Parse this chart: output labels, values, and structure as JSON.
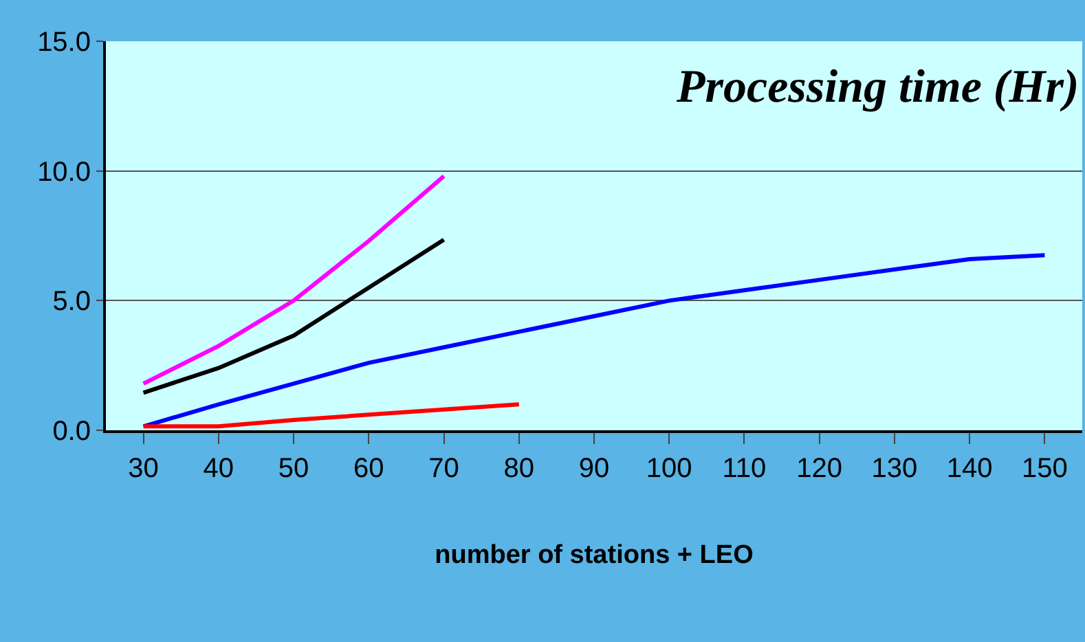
{
  "chart_data": {
    "type": "line",
    "annotations": [
      "Processing time (Hr)"
    ],
    "xlabel": "number of stations + LEO",
    "categories": [
      "30",
      "40",
      "50",
      "60",
      "70",
      "80",
      "90",
      "100",
      "110",
      "120",
      "130",
      "140",
      "150"
    ],
    "series": [
      {
        "color": "#ff00ff",
        "values": [
          1.8,
          3.25,
          5.0,
          7.3,
          9.8,
          null,
          null,
          null,
          null,
          null,
          null,
          null,
          null
        ]
      },
      {
        "color": "#000000",
        "values": [
          1.45,
          2.4,
          3.65,
          5.5,
          7.35,
          null,
          null,
          null,
          null,
          null,
          null,
          null,
          null
        ]
      },
      {
        "color": "#0000ff",
        "values": [
          0.15,
          1.0,
          1.8,
          2.6,
          3.2,
          3.8,
          4.4,
          5.0,
          5.4,
          5.8,
          6.2,
          6.6,
          6.75
        ]
      },
      {
        "color": "#ff0000",
        "values": [
          0.15,
          0.15,
          0.4,
          0.6,
          0.8,
          1.0,
          null,
          null,
          null,
          null,
          null,
          null,
          null
        ]
      }
    ],
    "ylim": [
      0,
      15
    ],
    "yticks": [
      {
        "value": 0,
        "label": "0.0"
      },
      {
        "value": 5,
        "label": "5.0"
      },
      {
        "value": 10,
        "label": "10.0"
      },
      {
        "value": 15,
        "label": "15.0"
      }
    ],
    "grid": "y"
  }
}
